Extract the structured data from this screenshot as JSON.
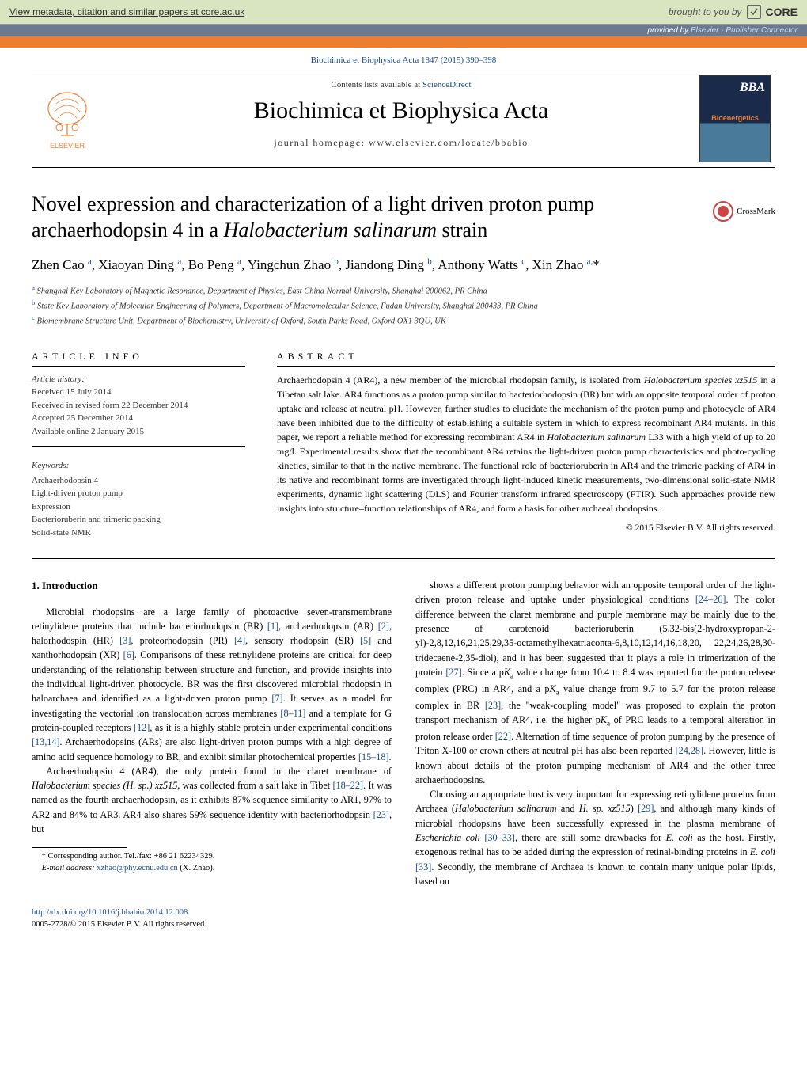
{
  "banner": {
    "metadata_link": "View metadata, citation and similar papers at core.ac.uk",
    "brought": "brought to you by",
    "core": "CORE",
    "provided": "provided by",
    "provider": "Elsevier - Publisher Connector"
  },
  "journal_ref": "Biochimica et Biophysica Acta 1847 (2015) 390–398",
  "masthead": {
    "contents": "Contents lists available at ",
    "sciencedirect": "ScienceDirect",
    "journal_title": "Biochimica et Biophysica Acta",
    "homepage": "journal homepage: www.elsevier.com/locate/bbabio",
    "cover_bba": "BBA",
    "cover_sub": "Bioenergetics",
    "elsevier": "ELSEVIER"
  },
  "article": {
    "title_1": "Novel expression and characterization of a light driven proton pump archaerhodopsin 4 in a ",
    "title_italic": "Halobacterium salinarum",
    "title_2": " strain",
    "crossmark": "CrossMark",
    "authors_html": "Zhen Cao <sup>a</sup>, Xiaoyan Ding <sup>a</sup>, Bo Peng <sup>a</sup>, Yingchun Zhao <sup>b</sup>, Jiandong Ding <sup>b</sup>, Anthony Watts <sup>c</sup>, Xin Zhao <sup>a,</sup>*",
    "affiliations": [
      "<sup>a</sup> Shanghai Key Laboratory of Magnetic Resonance, Department of Physics, East China Normal University, Shanghai 200062, PR China",
      "<sup>b</sup> State Key Laboratory of Molecular Engineering of Polymers, Department of Macromolecular Science, Fudan University, Shanghai 200433, PR China",
      "<sup>c</sup> Biomembrane Structure Unit, Department of Biochemistry, University of Oxford, South Parks Road, Oxford OX1 3QU, UK"
    ]
  },
  "info": {
    "label": "ARTICLE INFO",
    "history_head": "Article history:",
    "history": [
      "Received 15 July 2014",
      "Received in revised form 22 December 2014",
      "Accepted 25 December 2014",
      "Available online 2 January 2015"
    ],
    "keywords_head": "Keywords:",
    "keywords": [
      "Archaerhodopsin 4",
      "Light-driven proton pump",
      "Expression",
      "Bacterioruberin and trimeric packing",
      "Solid-state NMR"
    ]
  },
  "abstract": {
    "label": "ABSTRACT",
    "text": "Archaerhodopsin 4 (AR4), a new member of the microbial rhodopsin family, is isolated from <span class=\"italic\">Halobacterium species xz515</span> in a Tibetan salt lake. AR4 functions as a proton pump similar to bacteriorhodopsin (BR) but with an opposite temporal order of proton uptake and release at neutral pH. However, further studies to elucidate the mechanism of the proton pump and photocycle of AR4 have been inhibited due to the difficulty of establishing a suitable system in which to express recombinant AR4 mutants. In this paper, we report a reliable method for expressing recombinant AR4 in <span class=\"italic\">Halobacterium salinarum</span> L33 with a high yield of up to 20 mg/l. Experimental results show that the recombinant AR4 retains the light-driven proton pump characteristics and photo-cycling kinetics, similar to that in the native membrane. The functional role of bacterioruberin in AR4 and the trimeric packing of AR4 in its native and recombinant forms are investigated through light-induced kinetic measurements, two-dimensional solid-state NMR experiments, dynamic light scattering (DLS) and Fourier transform infrared spectroscopy (FTIR). Such approaches provide new insights into structure–function relationships of AR4, and form a basis for other archaeal rhodopsins.",
    "copyright": "© 2015 Elsevier B.V. All rights reserved."
  },
  "body": {
    "heading": "1. Introduction",
    "p1": "Microbial rhodopsins are a large family of photoactive seven-transmembrane retinylidene proteins that include bacteriorhodopsin (BR) <a>[1]</a>, archaerhodopsin (AR) <a>[2]</a>, halorhodospin (HR) <a>[3]</a>, proteorhodopsin (PR) <a>[4]</a>, sensory rhodopsin (SR) <a>[5]</a> and xanthorhodopsin (XR) <a>[6]</a>. Comparisons of these retinylidene proteins are critical for deep understanding of the relationship between structure and function, and provide insights into the individual light-driven photocycle. BR was the first discovered microbial rhodopsin in haloarchaea and identified as a light-driven proton pump <a>[7]</a>. It serves as a model for investigating the vectorial ion translocation across membranes <a>[8–11]</a> and a template for G protein-coupled receptors <a>[12]</a>, as it is a highly stable protein under experimental conditions <a>[13,14]</a>. Archaerhodopsins (ARs) are also light-driven proton pumps with a high degree of amino acid sequence homology to BR, and exhibit similar photochemical properties <a>[15–18]</a>.",
    "p2": "Archaerhodopsin 4 (AR4), the only protein found in the claret membrane of <span class=\"italic\">Halobacterium species (H. sp.) xz515</span>, was collected from a salt lake in Tibet <a>[18–22]</a>. It was named as the fourth archaerhodopsin, as it exhibits 87% sequence similarity to AR1, 97% to AR2 and 84% to AR3. AR4 also shares 59% sequence identity with bacteriorhodopsin <a>[23]</a>, but",
    "p3": "shows a different proton pumping behavior with an opposite temporal order of the light-driven proton release and uptake under physiological conditions <a>[24–26]</a>. The color difference between the claret membrane and purple membrane may be mainly due to the presence of carotenoid bacterioruberin (5,32-bis(2-hydroxypropan-2-yl)-2,8,12,16,21,25,29,35-octamethylhexatriaconta-6,8,10,12,14,16,18,20, 22,24,26,28,30-tridecaene-2,35-diol), and it has been suggested that it plays a role in trimerization of the protein <a>[27]</a>. Since a p<span class=\"italic\">K</span><sub>a</sub> value change from 10.4 to 8.4 was reported for the proton release complex (PRC) in AR4, and a p<span class=\"italic\">K</span><sub>a</sub> value change from 9.7 to 5.7 for the proton release complex in BR <a>[23]</a>, the \"weak-coupling model\" was proposed to explain the proton transport mechanism of AR4, i.e. the higher p<span class=\"italic\">K</span><sub>a</sub> of PRC leads to a temporal alteration in proton release order <a>[22]</a>. Alternation of time sequence of proton pumping by the presence of Triton X-100 or crown ethers at neutral pH has also been reported <a>[24,28]</a>. However, little is known about details of the proton pumping mechanism of AR4 and the other three archaerhodopsins.",
    "p4": "Choosing an appropriate host is very important for expressing retinylidene proteins from Archaea (<span class=\"italic\">Halobacterium salinarum</span> and <span class=\"italic\">H. sp. xz515</span>) <a>[29]</a>, and although many kinds of microbial rhodopsins have been successfully expressed in the plasma membrane of <span class=\"italic\">Escherichia coli</span> <a>[30–33]</a>, there are still some drawbacks for <span class=\"italic\">E. coli</span> as the host. Firstly, exogenous retinal has to be added during the expression of retinal-binding proteins in <span class=\"italic\">E. coli</span> <a>[33]</a>. Secondly, the membrane of Archaea is known to contain many unique polar lipids, based on"
  },
  "footnote": {
    "corresponding": "* Corresponding author. Tel./fax: +86 21 62234329.",
    "email_label": "E-mail address: ",
    "email": "xzhao@phy.ecnu.edu.cn",
    "email_suffix": " (X. Zhao)."
  },
  "footer": {
    "doi": "http://dx.doi.org/10.1016/j.bbabio.2014.12.008",
    "issn": "0005-2728/© 2015 Elsevier B.V. All rights reserved."
  },
  "colors": {
    "link": "#1a4a8a",
    "orange": "#ed7d31",
    "banner_bg": "#d9e4c0",
    "provided_bg": "#6b7a8f"
  }
}
